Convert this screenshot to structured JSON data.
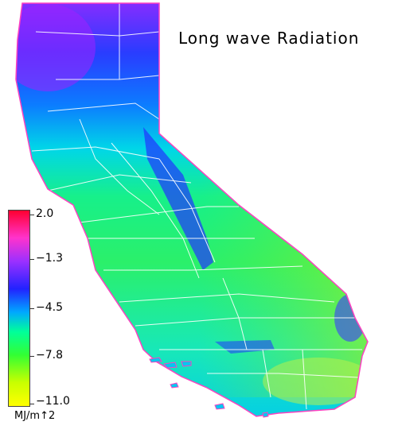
{
  "title": "Long wave Radiation",
  "legend": {
    "ticks": [
      "2.0",
      "−1.3",
      "−4.5",
      "−7.8",
      "−11.0"
    ],
    "unit": "MJ/m↑2",
    "colors": [
      "#ff0030",
      "#ff33cc",
      "#9b30ff",
      "#2222ff",
      "#00a8ff",
      "#00ff9a",
      "#33ff33",
      "#c8ff00",
      "#ffff00"
    ]
  }
}
